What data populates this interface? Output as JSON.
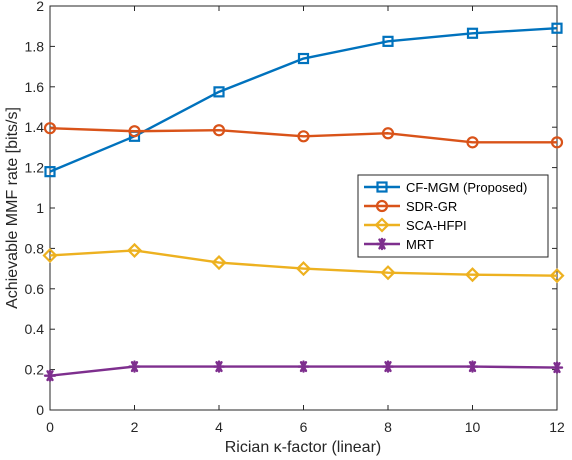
{
  "chart_data": {
    "type": "line",
    "title": "",
    "xlabel": "Rician κ-factor (linear)",
    "ylabel": "Achievable MMF rate [bits/s]",
    "xlim": [
      0,
      12
    ],
    "ylim": [
      0,
      2
    ],
    "xticks": [
      0,
      2,
      4,
      6,
      8,
      10,
      12
    ],
    "yticks": [
      0,
      0.2,
      0.4,
      0.6,
      0.8,
      1,
      1.2,
      1.4,
      1.6,
      1.8,
      2
    ],
    "x": [
      0,
      2,
      4,
      6,
      8,
      10,
      12
    ],
    "grid": false,
    "legend_position": "center-right",
    "series": [
      {
        "name": "CF-MGM (Proposed)",
        "values": [
          1.18,
          1.355,
          1.575,
          1.74,
          1.825,
          1.865,
          1.89
        ],
        "color": "#0072BD",
        "marker": "square"
      },
      {
        "name": "SDR-GR",
        "values": [
          1.395,
          1.38,
          1.385,
          1.355,
          1.37,
          1.325,
          1.325
        ],
        "color": "#D95319",
        "marker": "circle"
      },
      {
        "name": "SCA-HFPI",
        "values": [
          0.765,
          0.79,
          0.73,
          0.7,
          0.68,
          0.67,
          0.665
        ],
        "color": "#EDB120",
        "marker": "diamond"
      },
      {
        "name": "MRT",
        "values": [
          0.17,
          0.215,
          0.215,
          0.215,
          0.215,
          0.215,
          0.21
        ],
        "color": "#7E2F8E",
        "marker": "star"
      }
    ]
  }
}
